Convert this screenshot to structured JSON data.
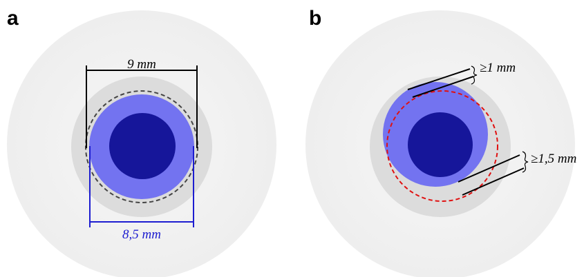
{
  "panels": [
    {
      "label": "a",
      "dimensions": [
        "9 mm",
        "8,5 mm"
      ]
    },
    {
      "label": "b",
      "dimensions": [
        "≥1 mm",
        "≥1,5 mm"
      ]
    }
  ]
}
